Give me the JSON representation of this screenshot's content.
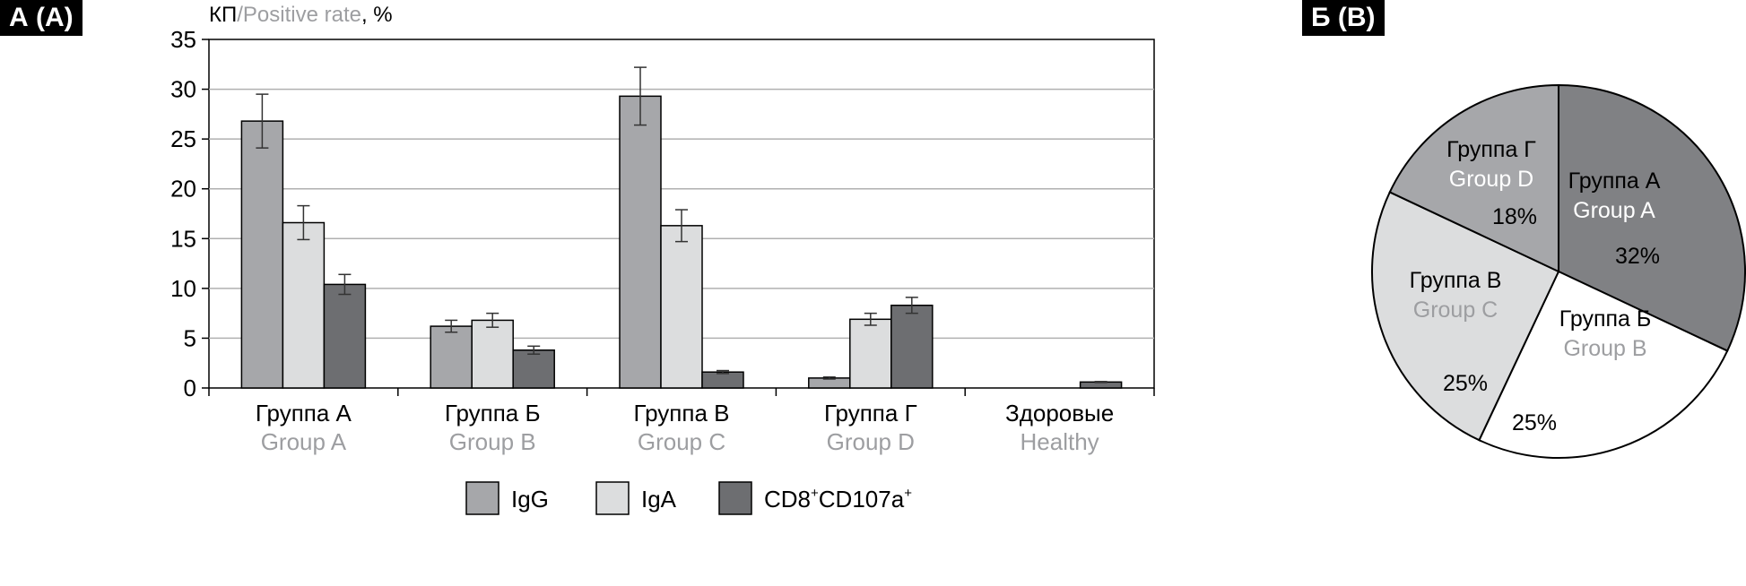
{
  "panels": {
    "a_label": "А (А)",
    "b_label": "Б (B)"
  },
  "chart_data": [
    {
      "type": "bar",
      "ylabel_ru": "КП",
      "ylabel_sep": "/",
      "ylabel_en": "Positive rate",
      "ylabel_unit": ", %",
      "ylim": [
        0,
        35
      ],
      "yticks": [
        0,
        5,
        10,
        15,
        20,
        25,
        30,
        35
      ],
      "grid": true,
      "legend_position": "bottom-center",
      "categories": [
        {
          "ru": "Группа А",
          "en": "Group A"
        },
        {
          "ru": "Группа Б",
          "en": "Group B"
        },
        {
          "ru": "Группа В",
          "en": "Group C"
        },
        {
          "ru": "Группа Г",
          "en": "Group D"
        },
        {
          "ru": "Здоровые",
          "en": "Healthy"
        }
      ],
      "series": [
        {
          "name": "IgG",
          "color": "#a6a7aa",
          "values": [
            26.8,
            6.2,
            29.3,
            1.0,
            0.0
          ],
          "errors": [
            2.7,
            0.6,
            2.9,
            0.1,
            0.0
          ]
        },
        {
          "name": "IgA",
          "color": "#dcddde",
          "values": [
            16.6,
            6.8,
            16.3,
            6.9,
            0.0
          ],
          "errors": [
            1.7,
            0.7,
            1.6,
            0.6,
            0.0
          ]
        },
        {
          "name": "CD8",
          "name_sup1": "+",
          "name_mid": "CD107a",
          "name_sup2": "+",
          "color": "#6d6e71",
          "values": [
            10.4,
            3.8,
            1.6,
            8.3,
            0.6
          ],
          "errors": [
            1.0,
            0.4,
            0.15,
            0.8,
            0.05
          ]
        }
      ]
    },
    {
      "type": "pie",
      "slices": [
        {
          "ru": "Группа А",
          "en": "Group A",
          "value": 32,
          "label": "32%",
          "color": "#808184",
          "en_color": "#ffffff",
          "ru_color": "#000000"
        },
        {
          "ru": "Группа Б",
          "en": "Group B",
          "value": 25,
          "label": "25%",
          "color": "#ffffff",
          "en_color": "#9d9ea1",
          "ru_color": "#000000"
        },
        {
          "ru": "Группа В",
          "en": "Group C",
          "value": 25,
          "label": "25%",
          "color": "#dcddde",
          "en_color": "#9d9ea1",
          "ru_color": "#000000"
        },
        {
          "ru": "Группа Г",
          "en": "Group D",
          "value": 18,
          "label": "18%",
          "color": "#a6a7aa",
          "en_color": "#ffffff",
          "ru_color": "#000000"
        }
      ]
    }
  ]
}
